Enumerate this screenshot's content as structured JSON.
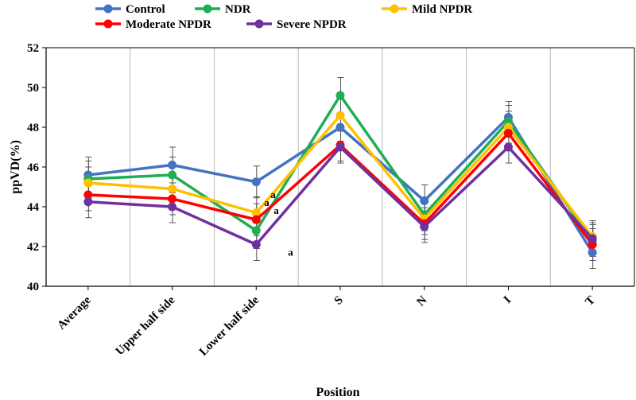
{
  "chart_data": {
    "type": "line",
    "title": "",
    "xlabel": "Position",
    "ylabel": "ppVD(%)",
    "ylim": [
      40,
      52
    ],
    "yticks": [
      40,
      42,
      44,
      46,
      48,
      50,
      52
    ],
    "grid": "vertical",
    "legend_position": "top",
    "categories": [
      "Average",
      "Upper half side",
      "Lower half side",
      "S",
      "N",
      "I",
      "T"
    ],
    "series": [
      {
        "name": "Control",
        "color": "#4472c4",
        "values": [
          45.6,
          46.1,
          45.25,
          48.0,
          44.3,
          48.5,
          41.7
        ],
        "errors": [
          0.9,
          0.9,
          0.8,
          0.7,
          0.8,
          0.8,
          0.8
        ]
      },
      {
        "name": "NDR",
        "color": "#1fae54",
        "values": [
          45.4,
          45.6,
          42.8,
          49.6,
          43.6,
          48.3,
          42.3
        ],
        "errors": [
          0.9,
          0.9,
          0.9,
          0.9,
          0.8,
          0.8,
          0.8
        ]
      },
      {
        "name": "Mild NPDR",
        "color": "#ffc000",
        "values": [
          45.2,
          44.9,
          43.7,
          48.6,
          43.4,
          48.0,
          42.5
        ],
        "errors": [
          0.8,
          0.8,
          0.8,
          0.8,
          0.8,
          0.8,
          0.8
        ]
      },
      {
        "name": "Moderate NPDR",
        "color": "#ff0000",
        "values": [
          44.6,
          44.4,
          43.35,
          47.1,
          43.15,
          47.7,
          42.1
        ],
        "errors": [
          0.8,
          0.8,
          0.8,
          0.8,
          0.8,
          0.8,
          0.8
        ]
      },
      {
        "name": "Severe NPDR",
        "color": "#7030a0",
        "values": [
          44.25,
          44.0,
          42.1,
          47.0,
          43.0,
          47.0,
          42.4
        ],
        "errors": [
          0.8,
          0.8,
          0.8,
          0.8,
          0.8,
          0.8,
          0.8
        ]
      }
    ],
    "annotations": [
      {
        "text": "a",
        "category": "Lower half side",
        "value": 44.2
      },
      {
        "text": "a",
        "category": "Lower half side",
        "value": 44.6
      },
      {
        "text": "a",
        "category": "Lower half side",
        "value": 43.8
      },
      {
        "text": "a",
        "category": "Lower half side",
        "value": 41.7
      }
    ]
  }
}
